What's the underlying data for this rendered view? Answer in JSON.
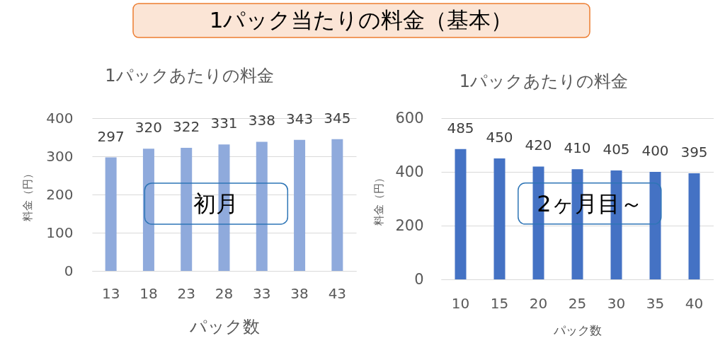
{
  "chart_data": [
    {
      "type": "other",
      "title": "1パック当たりの料金（基本）"
    },
    {
      "type": "bar",
      "title": "1パックあたりの料金",
      "xlabel": "パック数",
      "ylabel": "料金（円）",
      "categories": [
        "13",
        "18",
        "23",
        "28",
        "33",
        "38",
        "43"
      ],
      "values": [
        297,
        320,
        322,
        331,
        338,
        343,
        345
      ],
      "color": "#8faadc",
      "ylim": [
        0,
        400
      ],
      "yticks": [
        0,
        100,
        200,
        300,
        400
      ],
      "grid": "y",
      "data_labels": true,
      "annotations": [
        "初月"
      ]
    },
    {
      "type": "bar",
      "title": "1パックあたりの料金",
      "xlabel": "パック数",
      "ylabel": "料金（円）",
      "categories": [
        "10",
        "15",
        "20",
        "25",
        "30",
        "35",
        "40"
      ],
      "values": [
        485,
        450,
        420,
        410,
        405,
        400,
        395
      ],
      "color": "#4472c4",
      "ylim": [
        0,
        600
      ],
      "yticks": [
        0,
        200,
        400,
        600
      ],
      "grid": "y",
      "data_labels": true,
      "annotations": [
        "2ヶ月目～"
      ]
    }
  ]
}
